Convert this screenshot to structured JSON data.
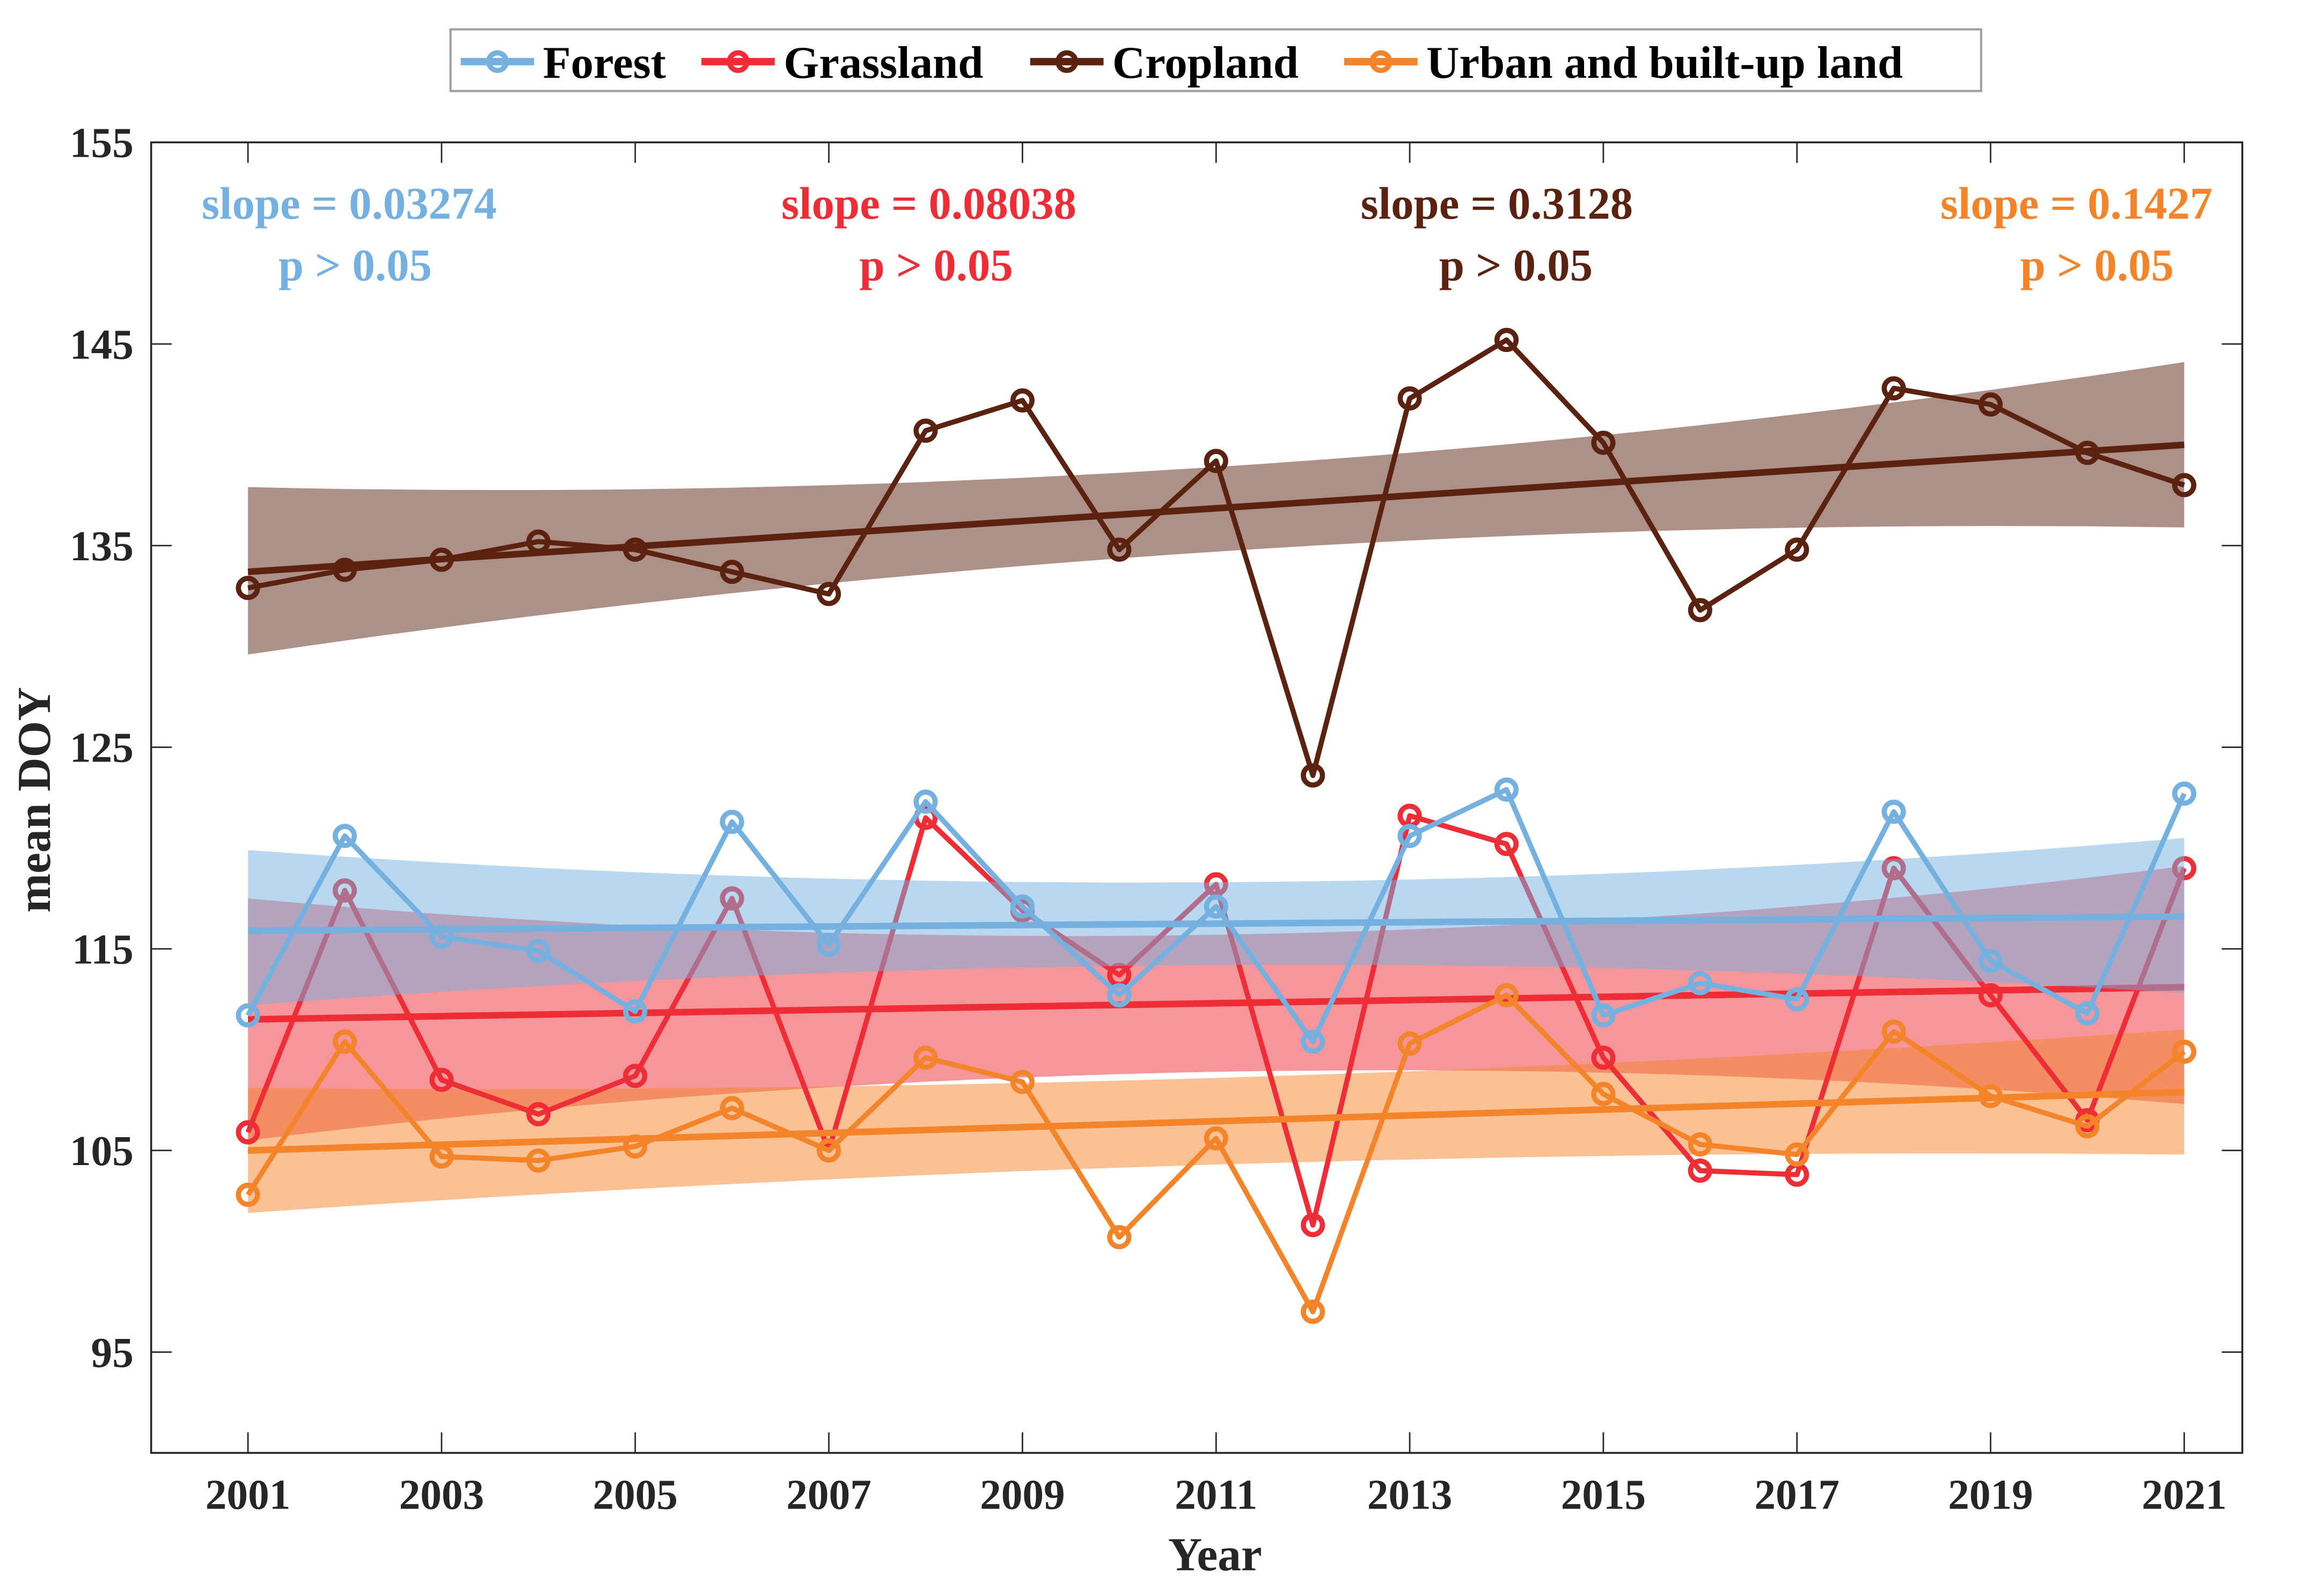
{
  "chart_data": {
    "type": "line",
    "xlabel": "Year",
    "ylabel": "mean DOY",
    "xlim": [
      2000,
      2021.6
    ],
    "ylim": [
      90,
      155
    ],
    "xticks": [
      2001,
      2003,
      2005,
      2007,
      2009,
      2011,
      2013,
      2015,
      2017,
      2019,
      2021
    ],
    "yticks": [
      95,
      105,
      115,
      125,
      135,
      145,
      155
    ],
    "legend_position": "top-center, outside",
    "x": [
      2001,
      2002,
      2003,
      2004,
      2005,
      2006,
      2007,
      2008,
      2009,
      2010,
      2011,
      2012,
      2013,
      2014,
      2015,
      2016,
      2017,
      2018,
      2019,
      2020,
      2021
    ],
    "series": [
      {
        "name": "Forest",
        "color": "#74b0e0",
        "band_color": "#74b0e0",
        "values": [
          111.7,
          120.6,
          115.6,
          114.9,
          111.9,
          121.3,
          115.2,
          122.3,
          117.1,
          112.7,
          117.1,
          110.4,
          120.6,
          122.9,
          111.7,
          113.3,
          112.5,
          121.8,
          114.4,
          111.8,
          122.7
        ],
        "trend": [
          115.9,
          116.6
        ],
        "ci": {
          "x": [
            2001,
            2011,
            2021
          ],
          "lower": [
            112.2,
            114.2,
            112.8
          ],
          "upper": [
            119.9,
            118.3,
            120.5
          ]
        },
        "slope_label": "slope = 0.03274",
        "p_label": "p > 0.05"
      },
      {
        "name": "Grassland",
        "color": "#ee2d37",
        "band_color": "#ee2d37",
        "values": [
          105.9,
          117.9,
          108.5,
          106.8,
          108.7,
          117.5,
          105.0,
          121.5,
          116.9,
          113.7,
          118.2,
          101.3,
          121.6,
          120.2,
          109.6,
          104.0,
          103.8,
          119.0,
          112.7,
          106.5,
          119.0
        ],
        "trend": [
          111.5,
          113.1
        ],
        "ci": {
          "x": [
            2001,
            2011,
            2021
          ],
          "lower": [
            105.5,
            108.9,
            107.3
          ],
          "upper": [
            117.5,
            115.7,
            119.1
          ]
        },
        "slope_label": "slope = 0.08038",
        "p_label": "p > 0.05"
      },
      {
        "name": "Cropland",
        "color": "#5c2210",
        "band_color": "#5c2210",
        "values": [
          132.9,
          133.8,
          134.3,
          135.2,
          134.8,
          133.7,
          132.6,
          140.7,
          142.2,
          134.8,
          139.2,
          123.6,
          142.3,
          145.2,
          140.1,
          131.8,
          134.8,
          142.8,
          142.0,
          139.6,
          138.0
        ],
        "trend": [
          133.7,
          140.0
        ],
        "ci": {
          "x": [
            2001,
            2011,
            2021
          ],
          "lower": [
            129.6,
            134.7,
            135.9
          ],
          "upper": [
            137.9,
            138.9,
            144.1
          ]
        },
        "slope_label": "slope = 0.3128",
        "p_label": "p > 0.05"
      },
      {
        "name": "Urban and built-up land",
        "color": "#f4842a",
        "band_color": "#f4842a",
        "values": [
          102.8,
          110.4,
          104.7,
          104.5,
          105.2,
          107.1,
          105.0,
          109.6,
          108.4,
          100.7,
          105.6,
          97.0,
          110.3,
          112.7,
          107.8,
          105.3,
          104.8,
          110.9,
          107.7,
          106.2,
          109.9
        ],
        "trend": [
          105.0,
          107.9
        ],
        "ci": {
          "x": [
            2001,
            2011,
            2021
          ],
          "lower": [
            101.9,
            104.3,
            104.8
          ],
          "upper": [
            108.1,
            108.6,
            111.0
          ]
        },
        "slope_label": "slope = 0.1427",
        "p_label": "p > 0.05"
      }
    ]
  }
}
